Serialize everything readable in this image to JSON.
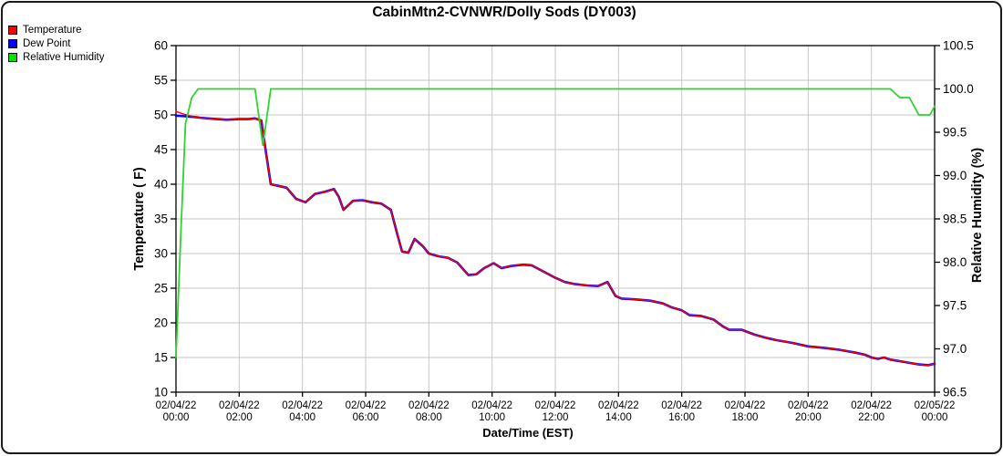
{
  "title": "CabinMtn2-CVNWR/Dolly Sods (DY003)",
  "legend": {
    "items": [
      {
        "label": "Temperature",
        "color": "#ff0000"
      },
      {
        "label": "Dew Point",
        "color": "#0000ff"
      },
      {
        "label": "Relative Humidity",
        "color": "#00e400"
      }
    ]
  },
  "colors": {
    "grid": "#c6c6c6",
    "axis": "#000000",
    "background": "#ffffff"
  },
  "chart_data": {
    "type": "line",
    "title": "CabinMtn2-CVNWR/Dolly Sods (DY003)",
    "xlabel": "Date/Time (EST)",
    "ylabel_left": "Temperature ( F)",
    "ylabel_right": "Relative Humidity (%)",
    "grid": true,
    "legend_position": "top-left",
    "x_hours_range": [
      0,
      24
    ],
    "x_ticks": [
      {
        "date": "02/04/22",
        "time": "00:00"
      },
      {
        "date": "02/04/22",
        "time": "02:00"
      },
      {
        "date": "02/04/22",
        "time": "04:00"
      },
      {
        "date": "02/04/22",
        "time": "06:00"
      },
      {
        "date": "02/04/22",
        "time": "08:00"
      },
      {
        "date": "02/04/22",
        "time": "10:00"
      },
      {
        "date": "02/04/22",
        "time": "12:00"
      },
      {
        "date": "02/04/22",
        "time": "14:00"
      },
      {
        "date": "02/04/22",
        "time": "16:00"
      },
      {
        "date": "02/04/22",
        "time": "18:00"
      },
      {
        "date": "02/04/22",
        "time": "20:00"
      },
      {
        "date": "02/04/22",
        "time": "22:00"
      },
      {
        "date": "02/05/22",
        "time": "00:00"
      }
    ],
    "y_left": {
      "min": 10,
      "max": 60,
      "ticks": [
        60,
        55,
        50,
        45,
        40,
        35,
        30,
        25,
        20,
        15,
        10
      ]
    },
    "y_right": {
      "min": 96.5,
      "max": 100.5,
      "ticks": [
        100.5,
        100.0,
        99.5,
        99.0,
        98.5,
        98.0,
        97.5,
        97.0,
        96.5
      ]
    },
    "series": [
      {
        "name": "Dew Point",
        "axis": "left",
        "color": "#0000ee",
        "width": 2.6,
        "points": [
          [
            0,
            49.9
          ],
          [
            0.3,
            49.8
          ],
          [
            0.6,
            49.7
          ],
          [
            0.75,
            49.6
          ],
          [
            1,
            49.5
          ],
          [
            1.3,
            49.4
          ],
          [
            1.6,
            49.3
          ],
          [
            2,
            49.4
          ],
          [
            2.3,
            49.4
          ],
          [
            2.5,
            49.5
          ],
          [
            2.7,
            49.2
          ],
          [
            2.85,
            44.5
          ],
          [
            3,
            40
          ],
          [
            3.3,
            39.7
          ],
          [
            3.5,
            39.5
          ],
          [
            3.8,
            37.9
          ],
          [
            4.1,
            37.4
          ],
          [
            4.4,
            38.6
          ],
          [
            4.7,
            38.9
          ],
          [
            5,
            39.3
          ],
          [
            5.15,
            38.2
          ],
          [
            5.3,
            36.3
          ],
          [
            5.6,
            37.6
          ],
          [
            5.9,
            37.7
          ],
          [
            6.2,
            37.4
          ],
          [
            6.5,
            37.2
          ],
          [
            6.8,
            36.3
          ],
          [
            7,
            32.8
          ],
          [
            7.15,
            30.3
          ],
          [
            7.35,
            30.1
          ],
          [
            7.55,
            32.1
          ],
          [
            7.8,
            31.1
          ],
          [
            8,
            30
          ],
          [
            8.3,
            29.6
          ],
          [
            8.6,
            29.4
          ],
          [
            8.9,
            28.7
          ],
          [
            9.25,
            26.9
          ],
          [
            9.5,
            27
          ],
          [
            9.75,
            27.9
          ],
          [
            10.05,
            28.6
          ],
          [
            10.3,
            27.9
          ],
          [
            10.6,
            28.2
          ],
          [
            11,
            28.4
          ],
          [
            11.25,
            28.3
          ],
          [
            11.5,
            27.7
          ],
          [
            11.75,
            27.1
          ],
          [
            12,
            26.5
          ],
          [
            12.3,
            25.9
          ],
          [
            12.6,
            25.6
          ],
          [
            13,
            25.4
          ],
          [
            13.35,
            25.3
          ],
          [
            13.65,
            25.9
          ],
          [
            13.9,
            23.9
          ],
          [
            14.1,
            23.5
          ],
          [
            14.5,
            23.4
          ],
          [
            15,
            23.2
          ],
          [
            15.4,
            22.8
          ],
          [
            15.7,
            22.2
          ],
          [
            16,
            21.8
          ],
          [
            16.25,
            21.1
          ],
          [
            16.6,
            21
          ],
          [
            17,
            20.5
          ],
          [
            17.3,
            19.5
          ],
          [
            17.5,
            19
          ],
          [
            17.9,
            19
          ],
          [
            18.3,
            18.3
          ],
          [
            18.7,
            17.8
          ],
          [
            19,
            17.5
          ],
          [
            19.5,
            17.1
          ],
          [
            20,
            16.6
          ],
          [
            20.5,
            16.4
          ],
          [
            21,
            16.1
          ],
          [
            21.5,
            15.7
          ],
          [
            21.8,
            15.4
          ],
          [
            22,
            15
          ],
          [
            22.2,
            14.8
          ],
          [
            22.4,
            15
          ],
          [
            22.6,
            14.7
          ],
          [
            23,
            14.4
          ],
          [
            23.5,
            14
          ],
          [
            23.8,
            13.9
          ],
          [
            24,
            14.1
          ]
        ]
      },
      {
        "name": "Temperature",
        "axis": "left",
        "color": "#ff0000",
        "width": 1.4,
        "points": [
          [
            0,
            50.5
          ],
          [
            0.25,
            50.1
          ],
          [
            0.5,
            49.8
          ],
          [
            0.75,
            49.6
          ],
          [
            1,
            49.5
          ],
          [
            1.3,
            49.4
          ],
          [
            1.6,
            49.3
          ],
          [
            2,
            49.4
          ],
          [
            2.3,
            49.4
          ],
          [
            2.5,
            49.5
          ],
          [
            2.7,
            49.2
          ],
          [
            2.85,
            44.5
          ],
          [
            3,
            40
          ],
          [
            3.3,
            39.7
          ],
          [
            3.5,
            39.5
          ],
          [
            3.8,
            37.9
          ],
          [
            4.1,
            37.4
          ],
          [
            4.4,
            38.6
          ],
          [
            4.7,
            38.9
          ],
          [
            5,
            39.3
          ],
          [
            5.15,
            38.2
          ],
          [
            5.3,
            36.3
          ],
          [
            5.6,
            37.6
          ],
          [
            5.9,
            37.7
          ],
          [
            6.2,
            37.4
          ],
          [
            6.5,
            37.2
          ],
          [
            6.8,
            36.3
          ],
          [
            7,
            32.8
          ],
          [
            7.15,
            30.3
          ],
          [
            7.35,
            30.1
          ],
          [
            7.55,
            32.1
          ],
          [
            7.8,
            31.1
          ],
          [
            8,
            30
          ],
          [
            8.3,
            29.6
          ],
          [
            8.6,
            29.4
          ],
          [
            8.9,
            28.7
          ],
          [
            9.25,
            26.9
          ],
          [
            9.5,
            27
          ],
          [
            9.75,
            27.9
          ],
          [
            10.05,
            28.6
          ],
          [
            10.3,
            27.9
          ],
          [
            10.6,
            28.2
          ],
          [
            11,
            28.4
          ],
          [
            11.25,
            28.3
          ],
          [
            11.5,
            27.7
          ],
          [
            11.75,
            27.1
          ],
          [
            12,
            26.5
          ],
          [
            12.3,
            25.9
          ],
          [
            12.6,
            25.6
          ],
          [
            13,
            25.4
          ],
          [
            13.35,
            25.3
          ],
          [
            13.65,
            25.9
          ],
          [
            13.9,
            23.9
          ],
          [
            14.1,
            23.5
          ],
          [
            14.5,
            23.4
          ],
          [
            15,
            23.2
          ],
          [
            15.4,
            22.8
          ],
          [
            15.7,
            22.2
          ],
          [
            16,
            21.8
          ],
          [
            16.25,
            21.1
          ],
          [
            16.6,
            21
          ],
          [
            17,
            20.5
          ],
          [
            17.3,
            19.5
          ],
          [
            17.5,
            19
          ],
          [
            17.9,
            19
          ],
          [
            18.3,
            18.3
          ],
          [
            18.7,
            17.8
          ],
          [
            19,
            17.5
          ],
          [
            19.5,
            17.1
          ],
          [
            20,
            16.6
          ],
          [
            20.5,
            16.4
          ],
          [
            21,
            16.1
          ],
          [
            21.5,
            15.7
          ],
          [
            21.8,
            15.4
          ],
          [
            22,
            15
          ],
          [
            22.2,
            14.8
          ],
          [
            22.4,
            15
          ],
          [
            22.6,
            14.7
          ],
          [
            23,
            14.4
          ],
          [
            23.5,
            14
          ],
          [
            23.8,
            13.9
          ],
          [
            24,
            14.1
          ]
        ]
      },
      {
        "name": "Relative Humidity",
        "axis": "right",
        "color": "#2dd42d",
        "width": 1.8,
        "points": [
          [
            0,
            96.9
          ],
          [
            0.15,
            98.3
          ],
          [
            0.3,
            99.6
          ],
          [
            0.5,
            99.9
          ],
          [
            0.7,
            100
          ],
          [
            2.5,
            100
          ],
          [
            2.75,
            99.35
          ],
          [
            3,
            100
          ],
          [
            22.6,
            100
          ],
          [
            22.9,
            99.9
          ],
          [
            23.2,
            99.9
          ],
          [
            23.5,
            99.7
          ],
          [
            23.85,
            99.7
          ],
          [
            24,
            99.8
          ]
        ]
      }
    ]
  }
}
